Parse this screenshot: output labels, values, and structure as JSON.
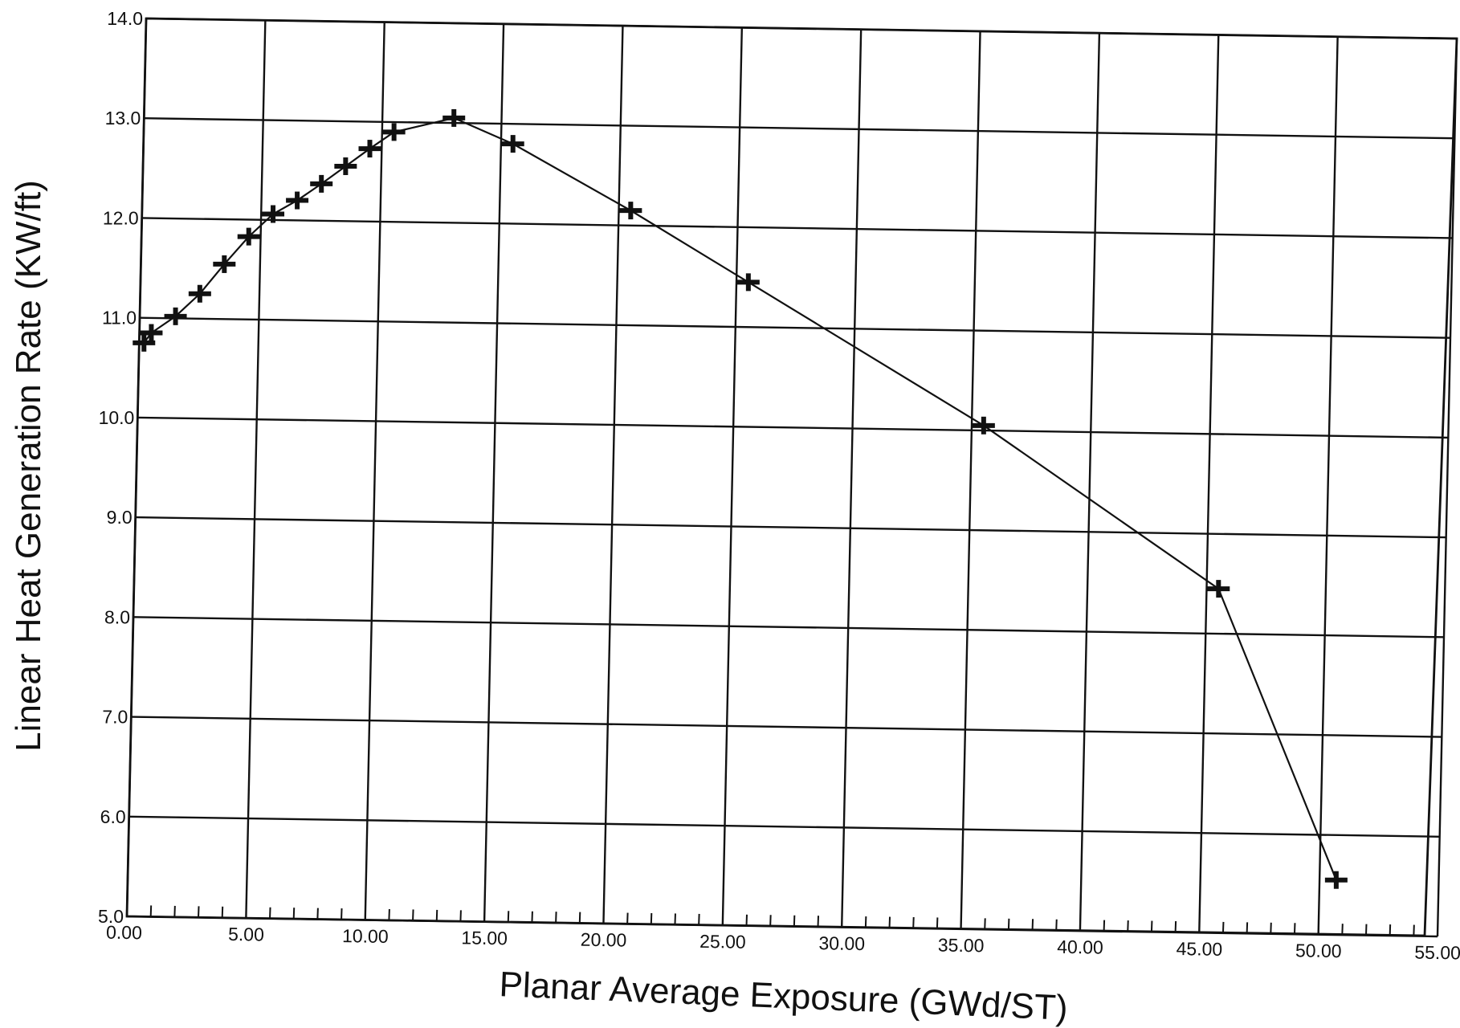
{
  "chart_data": {
    "type": "line",
    "xlabel": "Planar Average Exposure (GWd/ST)",
    "ylabel": "Linear Heat Generation Rate (KW/ft)",
    "xlim": [
      0,
      55
    ],
    "ylim": [
      5,
      14
    ],
    "x_ticks": [
      "0.00",
      "5.00",
      "10.00",
      "15.00",
      "20.00",
      "25.00",
      "30.00",
      "35.00",
      "40.00",
      "45.00",
      "50.00",
      "55.00"
    ],
    "y_ticks": [
      "5.0",
      "6.0",
      "7.0",
      "8.0",
      "9.0",
      "10.0",
      "11.0",
      "12.0",
      "13.0",
      "14.0"
    ],
    "grid": true,
    "marker": "plus",
    "series": [
      {
        "x": [
          0.2,
          0.5,
          1.5,
          2.5,
          3.5,
          4.5,
          5.5,
          6.5,
          7.5,
          8.5,
          9.5,
          10.5,
          13.0,
          15.5,
          20.5,
          25.5,
          35.5,
          45.5,
          50.7
        ],
        "y": [
          10.75,
          10.85,
          11.02,
          11.25,
          11.55,
          11.83,
          12.06,
          12.2,
          12.37,
          12.55,
          12.73,
          12.9,
          13.05,
          12.8,
          12.15,
          11.45,
          10.05,
          8.45,
          5.55
        ]
      }
    ]
  }
}
